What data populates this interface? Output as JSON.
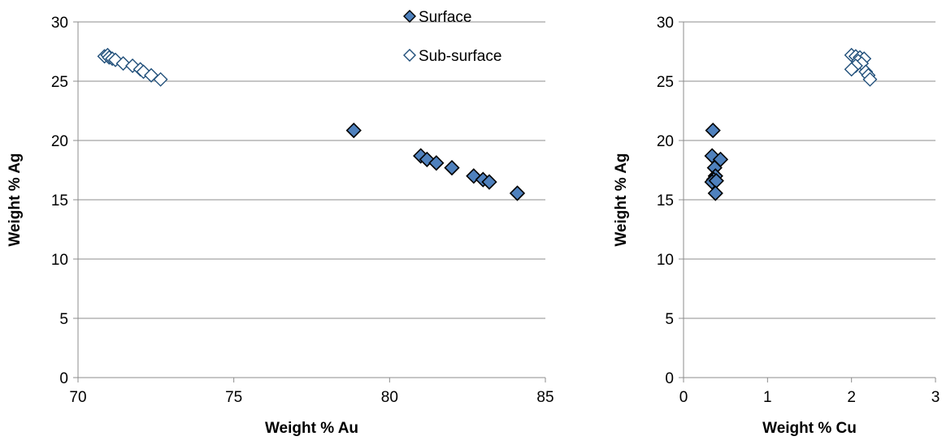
{
  "chart_data": [
    {
      "type": "scatter",
      "xlabel": "Weight % Au",
      "ylabel": "Weight % Ag",
      "xlim": [
        70,
        85
      ],
      "ylim": [
        0,
        30
      ],
      "xticks": [
        "70",
        "75",
        "80",
        "85"
      ],
      "yticks": [
        "0",
        "5",
        "10",
        "15",
        "20",
        "25",
        "30"
      ],
      "grid": "horizontal",
      "legend": "top-right",
      "series": [
        {
          "name": "Surface",
          "marker": "filled-diamond",
          "color": "#4f81bd",
          "points": [
            [
              78.85,
              20.85
            ],
            [
              81.0,
              18.7
            ],
            [
              81.2,
              18.4
            ],
            [
              81.5,
              18.1
            ],
            [
              82.0,
              17.7
            ],
            [
              82.7,
              17.0
            ],
            [
              83.0,
              16.7
            ],
            [
              83.2,
              16.5
            ],
            [
              84.1,
              15.55
            ]
          ]
        },
        {
          "name": "Sub-surface",
          "marker": "hollow-diamond",
          "color": "#1f4e79",
          "points": [
            [
              70.85,
              27.1
            ],
            [
              70.95,
              27.2
            ],
            [
              71.0,
              27.0
            ],
            [
              71.1,
              26.9
            ],
            [
              71.2,
              26.8
            ],
            [
              71.45,
              26.5
            ],
            [
              71.75,
              26.3
            ],
            [
              72.0,
              26.0
            ],
            [
              72.1,
              25.8
            ],
            [
              72.35,
              25.5
            ],
            [
              72.65,
              25.15
            ]
          ]
        }
      ]
    },
    {
      "type": "scatter",
      "xlabel": "Weight % Cu",
      "ylabel": "Weight % Ag",
      "xlim": [
        0,
        3
      ],
      "ylim": [
        0,
        30
      ],
      "xticks": [
        "0",
        "1",
        "2",
        "3"
      ],
      "yticks": [
        "0",
        "5",
        "10",
        "15",
        "20",
        "25",
        "30"
      ],
      "grid": "horizontal",
      "series": [
        {
          "name": "Surface",
          "marker": "filled-diamond",
          "color": "#4f81bd",
          "points": [
            [
              0.35,
              20.85
            ],
            [
              0.34,
              18.7
            ],
            [
              0.44,
              18.4
            ],
            [
              0.37,
              17.7
            ],
            [
              0.38,
              17.0
            ],
            [
              0.36,
              16.7
            ],
            [
              0.34,
              16.5
            ],
            [
              0.39,
              16.6
            ],
            [
              0.38,
              15.55
            ]
          ]
        },
        {
          "name": "Sub-surface",
          "marker": "hollow-diamond",
          "color": "#1f4e79",
          "points": [
            [
              2.0,
              27.2
            ],
            [
              2.05,
              27.1
            ],
            [
              2.1,
              27.0
            ],
            [
              2.15,
              26.9
            ],
            [
              2.08,
              26.7
            ],
            [
              2.12,
              26.5
            ],
            [
              2.05,
              26.3
            ],
            [
              2.0,
              26.0
            ],
            [
              2.17,
              25.8
            ],
            [
              2.2,
              25.5
            ],
            [
              2.22,
              25.15
            ]
          ]
        }
      ]
    }
  ]
}
